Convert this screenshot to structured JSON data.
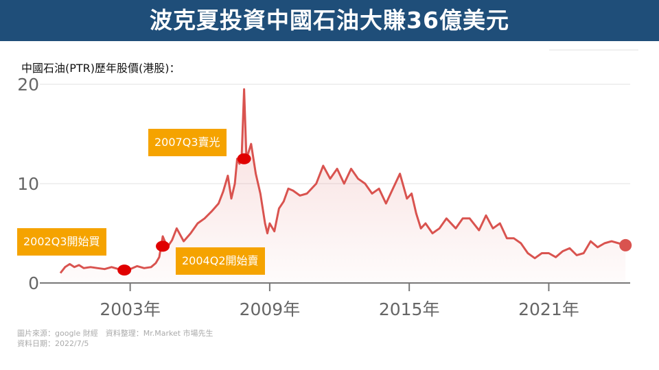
{
  "title": "波克夏投資中國石油大賺36億美元",
  "chart_data": {
    "type": "area",
    "subtitle": "中國石油(PTR)歷年股價(港股)：",
    "ylim": [
      0,
      20
    ],
    "y_ticks": [
      "0",
      "10",
      "20"
    ],
    "xlim": [
      2000.0,
      2024.5
    ],
    "x_ticks": [
      {
        "value": 2003,
        "label": "2003年"
      },
      {
        "value": 2009,
        "label": "2009年"
      },
      {
        "value": 2015,
        "label": "2015年"
      },
      {
        "value": 2021,
        "label": "2021年"
      }
    ],
    "grid": true,
    "series": [
      {
        "color": "#d9534f",
        "x": [
          2000.0,
          2000.2,
          2000.4,
          2000.6,
          2000.8,
          2001.0,
          2001.3,
          2001.6,
          2001.9,
          2002.2,
          2002.5,
          2002.75,
          2003.0,
          2003.3,
          2003.6,
          2003.9,
          2004.1,
          2004.25,
          2004.4,
          2004.6,
          2004.8,
          2005.0,
          2005.3,
          2005.6,
          2005.9,
          2006.2,
          2006.5,
          2006.8,
          2007.0,
          2007.2,
          2007.35,
          2007.5,
          2007.6,
          2007.7,
          2007.8,
          2007.9,
          2008.0,
          2008.2,
          2008.4,
          2008.6,
          2008.8,
          2008.9,
          2009.0,
          2009.2,
          2009.4,
          2009.6,
          2009.8,
          2010.0,
          2010.3,
          2010.6,
          2011.0,
          2011.3,
          2011.6,
          2011.9,
          2012.2,
          2012.5,
          2012.8,
          2013.1,
          2013.4,
          2013.7,
          2014.0,
          2014.3,
          2014.6,
          2014.9,
          2015.1,
          2015.3,
          2015.5,
          2015.7,
          2016.0,
          2016.3,
          2016.6,
          2017.0,
          2017.3,
          2017.6,
          2018.0,
          2018.3,
          2018.6,
          2018.9,
          2019.2,
          2019.5,
          2019.8,
          2020.1,
          2020.4,
          2020.7,
          2021.0,
          2021.3,
          2021.6,
          2021.9,
          2022.2,
          2022.5,
          2022.8,
          2023.1,
          2023.4,
          2023.7,
          2024.0,
          2024.3
        ],
        "values": [
          1.0,
          1.6,
          1.9,
          1.6,
          1.8,
          1.5,
          1.6,
          1.5,
          1.4,
          1.6,
          1.4,
          1.3,
          1.4,
          1.7,
          1.5,
          1.6,
          2.0,
          2.6,
          4.7,
          3.6,
          4.3,
          5.5,
          4.2,
          5.0,
          6.0,
          6.5,
          7.2,
          8.0,
          9.2,
          10.8,
          8.5,
          10.0,
          12.5,
          12.0,
          13.0,
          19.5,
          12.5,
          14.0,
          11.0,
          9.0,
          6.0,
          5.0,
          6.0,
          5.2,
          7.5,
          8.2,
          9.5,
          9.3,
          8.8,
          9.0,
          10.0,
          11.8,
          10.5,
          11.5,
          10.0,
          11.5,
          10.5,
          10.0,
          9.0,
          9.5,
          8.0,
          9.5,
          11.0,
          8.5,
          9.0,
          7.0,
          5.5,
          6.0,
          5.0,
          5.5,
          6.5,
          5.5,
          6.5,
          6.5,
          5.3,
          6.8,
          5.5,
          6.0,
          4.5,
          4.5,
          4.0,
          3.0,
          2.5,
          3.0,
          3.0,
          2.6,
          3.2,
          3.5,
          2.8,
          3.0,
          4.2,
          3.6,
          4.0,
          4.2,
          4.0,
          3.8
        ],
        "end_marker": true
      }
    ],
    "markers": [
      {
        "x": 2002.75,
        "y": 1.3,
        "label": "2002Q3開始買"
      },
      {
        "x": 2004.4,
        "y": 3.7,
        "label": "2004Q2開始賣"
      },
      {
        "x": 2007.9,
        "y": 12.5,
        "label": "2007Q3賣光"
      }
    ]
  },
  "footer": {
    "source": "圖片來源：google 財經　資料整理：Mr.Market 市場先生",
    "date": "資料日期：2022/7/5"
  }
}
